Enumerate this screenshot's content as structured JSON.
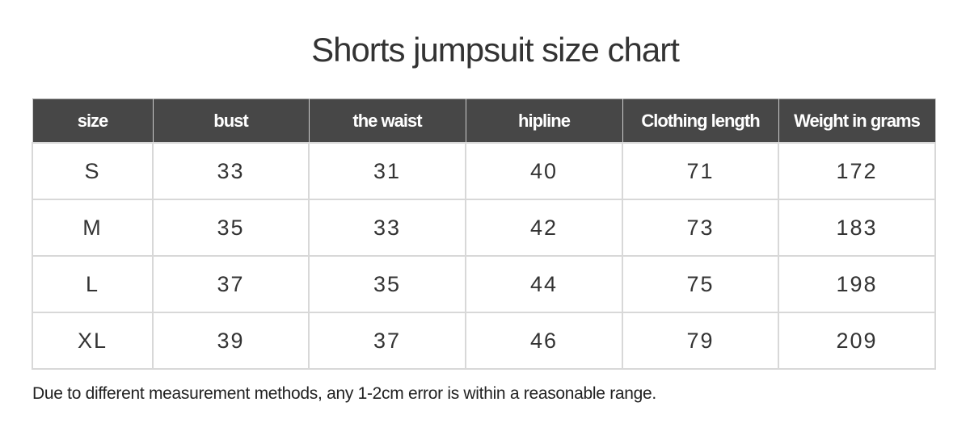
{
  "title": "Shorts jumpsuit size chart",
  "headers": [
    "size",
    "bust",
    "the waist",
    "hipline",
    "Clothing length",
    "Weight in grams"
  ],
  "rows": [
    [
      "S",
      "33",
      "31",
      "40",
      "71",
      "172"
    ],
    [
      "M",
      "35",
      "33",
      "42",
      "73",
      "183"
    ],
    [
      "L",
      "37",
      "35",
      "44",
      "75",
      "198"
    ],
    [
      "XL",
      "39",
      "37",
      "46",
      "79",
      "209"
    ]
  ],
  "note": "Due to different measurement methods, any 1-2cm error is within a reasonable range."
}
